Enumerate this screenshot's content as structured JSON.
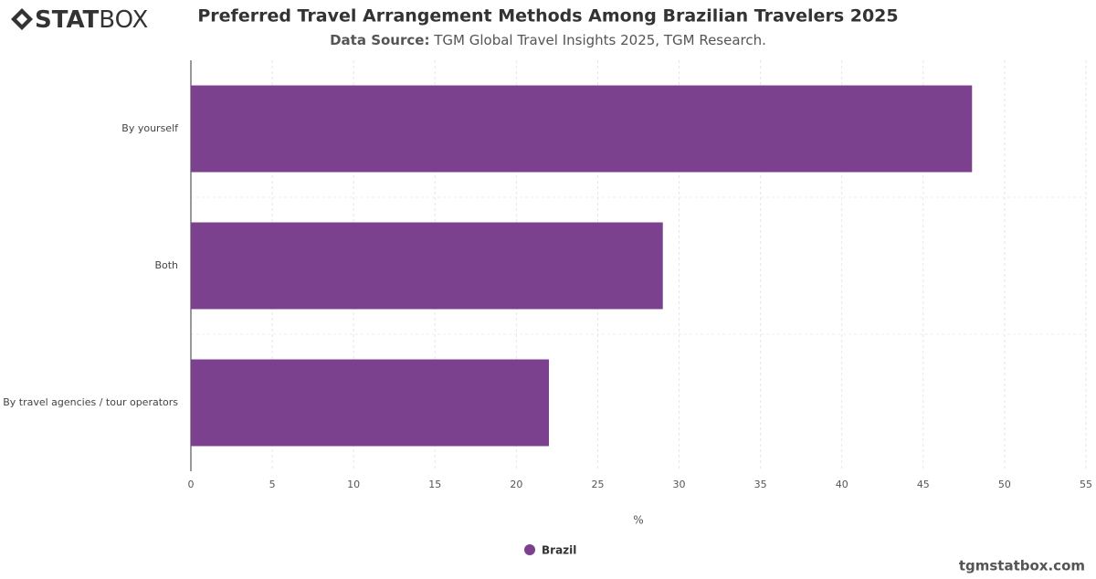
{
  "logo": {
    "bold": "STAT",
    "light": "BOX"
  },
  "footer": "tgmstatbox.com",
  "chart_data": {
    "type": "bar",
    "orientation": "horizontal",
    "title": "Preferred Travel Arrangement Methods Among Brazilian Travelers 2025",
    "source_label": "Data Source:",
    "source": "TGM Global Travel Insights 2025, TGM Research.",
    "categories": [
      "By yourself",
      "Both",
      "By travel agencies / tour operators"
    ],
    "series": [
      {
        "name": "Brazil",
        "color": "#7b418f",
        "values": [
          48,
          29,
          22
        ]
      }
    ],
    "xlabel": "%",
    "xlim": [
      0,
      55
    ],
    "xticks": [
      0,
      5,
      10,
      15,
      20,
      25,
      30,
      35,
      40,
      45,
      50,
      55
    ],
    "grid": true,
    "legend": "bottom"
  }
}
